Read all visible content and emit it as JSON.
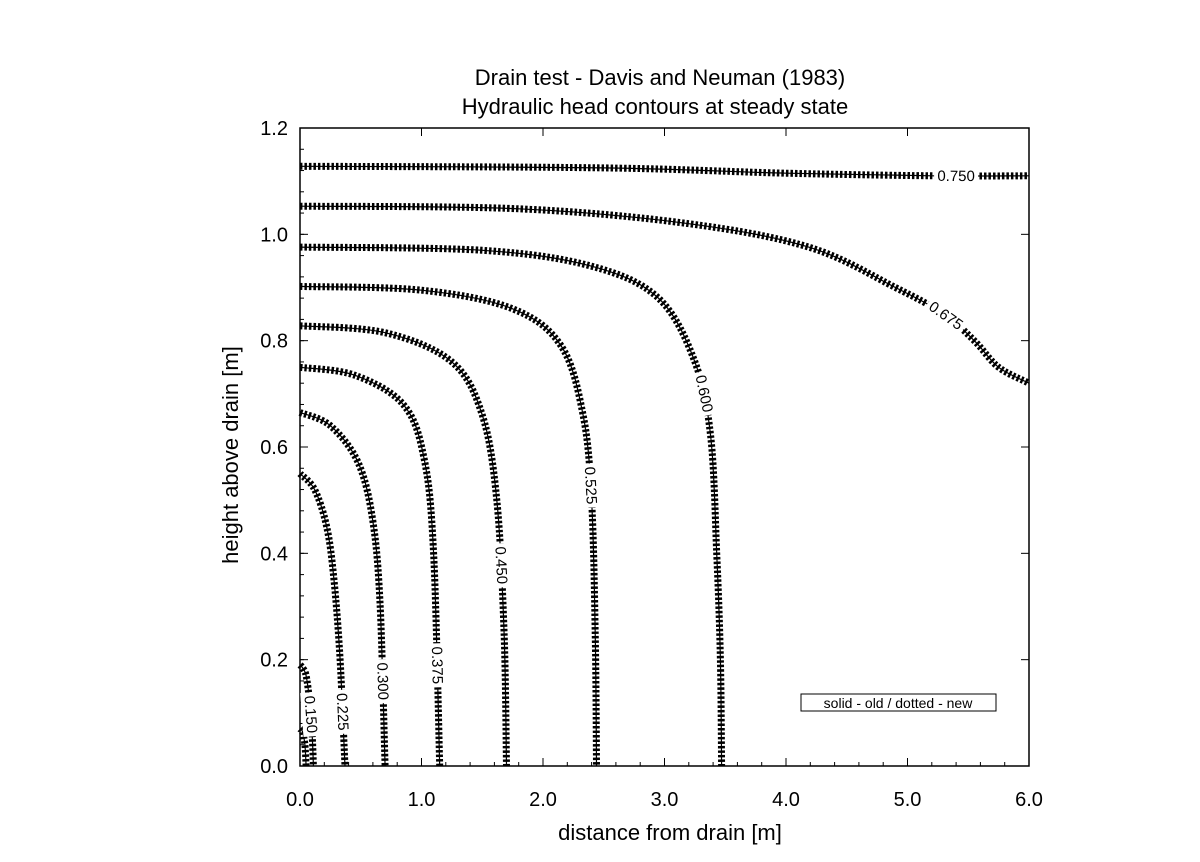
{
  "chart_data": {
    "type": "contour",
    "title": "Drain test - Davis and Neuman (1983)",
    "subtitle": "Hydraulic head contours at steady state",
    "xlabel": "distance from drain [m]",
    "ylabel": "height above drain [m]",
    "xlim": [
      0,
      6
    ],
    "ylim": [
      0,
      1.2
    ],
    "xticks": [
      "0.0",
      "1.0",
      "2.0",
      "3.0",
      "4.0",
      "5.0",
      "6.0"
    ],
    "yticks": [
      "0.0",
      "0.2",
      "0.4",
      "0.6",
      "0.8",
      "1.0",
      "1.2"
    ],
    "legend_text": "solid - old / dotted - new",
    "legend_position": "bottom-right",
    "contours": [
      {
        "label": "0.150",
        "points": [
          [
            0.0,
            0.19
          ],
          [
            0.02,
            0.185
          ],
          [
            0.05,
            0.17
          ],
          [
            0.08,
            0.12
          ],
          [
            0.1,
            0.06
          ],
          [
            0.11,
            0.0
          ]
        ]
      },
      {
        "label": "",
        "points": [
          [
            0.0,
            0.07
          ],
          [
            0.02,
            0.065
          ],
          [
            0.04,
            0.04
          ],
          [
            0.05,
            0.0
          ]
        ]
      },
      {
        "label": "0.225",
        "points": [
          [
            0.0,
            0.55
          ],
          [
            0.12,
            0.52
          ],
          [
            0.22,
            0.45
          ],
          [
            0.28,
            0.35
          ],
          [
            0.33,
            0.2
          ],
          [
            0.37,
            0.0
          ]
        ]
      },
      {
        "label": "0.300",
        "points": [
          [
            0.0,
            0.665
          ],
          [
            0.25,
            0.64
          ],
          [
            0.48,
            0.57
          ],
          [
            0.6,
            0.46
          ],
          [
            0.66,
            0.3
          ],
          [
            0.7,
            0.0
          ]
        ]
      },
      {
        "label": "0.375",
        "points": [
          [
            0.0,
            0.75
          ],
          [
            0.45,
            0.735
          ],
          [
            0.85,
            0.68
          ],
          [
            1.02,
            0.58
          ],
          [
            1.1,
            0.4
          ],
          [
            1.15,
            0.0
          ]
        ]
      },
      {
        "label": "0.450",
        "points": [
          [
            0.0,
            0.828
          ],
          [
            0.7,
            0.815
          ],
          [
            1.25,
            0.76
          ],
          [
            1.5,
            0.66
          ],
          [
            1.62,
            0.5
          ],
          [
            1.68,
            0.25
          ],
          [
            1.7,
            0.0
          ]
        ]
      },
      {
        "label": "0.525",
        "points": [
          [
            0.0,
            0.902
          ],
          [
            1.0,
            0.895
          ],
          [
            1.75,
            0.86
          ],
          [
            2.15,
            0.79
          ],
          [
            2.33,
            0.66
          ],
          [
            2.4,
            0.5
          ],
          [
            2.43,
            0.25
          ],
          [
            2.44,
            0.0
          ]
        ]
      },
      {
        "label": "0.600",
        "points": [
          [
            0.0,
            0.976
          ],
          [
            1.5,
            0.97
          ],
          [
            2.4,
            0.94
          ],
          [
            2.95,
            0.88
          ],
          [
            3.25,
            0.76
          ],
          [
            3.38,
            0.62
          ],
          [
            3.43,
            0.4
          ],
          [
            3.46,
            0.2
          ],
          [
            3.47,
            0.0
          ]
        ]
      },
      {
        "label": "0.675",
        "points": [
          [
            0.0,
            1.053
          ],
          [
            1.8,
            1.048
          ],
          [
            3.2,
            1.02
          ],
          [
            4.2,
            0.975
          ],
          [
            4.9,
            0.9
          ],
          [
            5.3,
            0.85
          ],
          [
            5.55,
            0.8
          ],
          [
            5.75,
            0.75
          ],
          [
            6.0,
            0.72
          ]
        ]
      },
      {
        "label": "0.750",
        "points": [
          [
            0.0,
            1.128
          ],
          [
            2.5,
            1.125
          ],
          [
            4.0,
            1.115
          ],
          [
            5.2,
            1.11
          ],
          [
            6.0,
            1.11
          ]
        ]
      }
    ]
  }
}
